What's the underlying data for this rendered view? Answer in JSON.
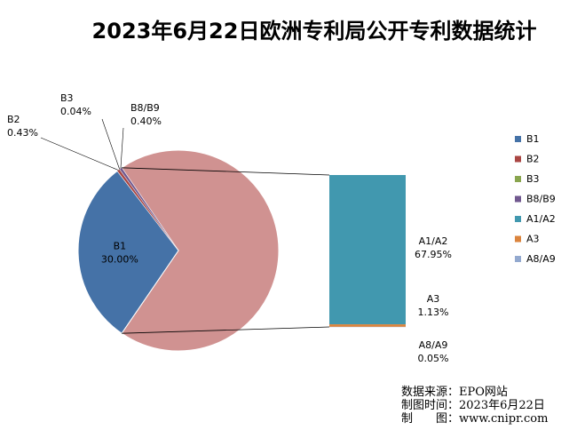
{
  "chart_data": {
    "type": "pie",
    "title": "2023年6月22日欧洲专利局公开专利数据统计",
    "series": [
      {
        "name": "B1",
        "value": 30.0,
        "label": "30.00%",
        "color": "#4572A7"
      },
      {
        "name": "B2",
        "value": 0.43,
        "label": "0.43%",
        "color": "#AA4643"
      },
      {
        "name": "B3",
        "value": 0.04,
        "label": "0.04%",
        "color": "#89A54E"
      },
      {
        "name": "B8/B9",
        "value": 0.4,
        "label": "0.40%",
        "color": "#71588F"
      },
      {
        "name": "A1/A2",
        "value": 67.95,
        "label": "67.95%",
        "color": "#4198AF"
      },
      {
        "name": "A3",
        "value": 1.13,
        "label": "1.13%",
        "color": "#DB843D"
      },
      {
        "name": "A8/A9",
        "value": 0.05,
        "label": "0.05%",
        "color": "#93A9CF"
      }
    ],
    "combined_slice": {
      "label": "",
      "value": 69.13,
      "color": "#D09291"
    },
    "legend_position": "right"
  },
  "notes": {
    "source": "数据来源：EPO网站",
    "date": "制图时间：2023年6月22日",
    "author": "制　　图：www.cnipr.com"
  }
}
